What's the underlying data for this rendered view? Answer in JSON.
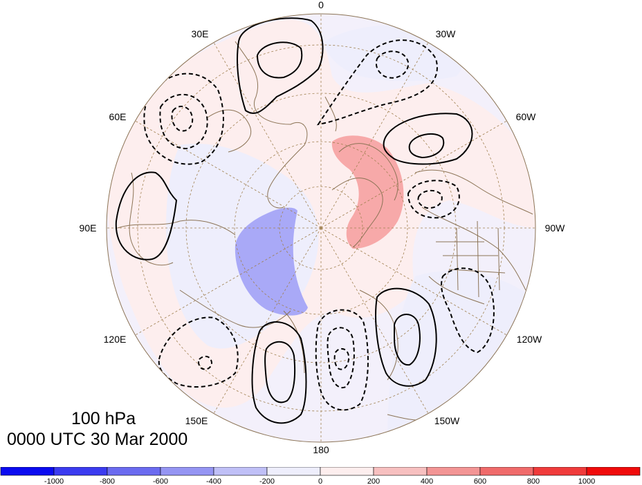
{
  "figure": {
    "level": "100 hPa",
    "time": "0000 UTC 30 Mar 2000"
  },
  "longitude_labels": [
    "0",
    "30W",
    "60W",
    "90W",
    "120W",
    "150W",
    "180",
    "150E",
    "120E",
    "90E",
    "60E",
    "30E"
  ],
  "projection": "polar stereographic, north pole centered",
  "colors": {
    "coastline": "#8b7355",
    "grid": "#a08050",
    "contour": "#000000",
    "light_pos": "#fdeeee",
    "light_neg": "#eeeefc",
    "pos_shade": "#f7a9a9",
    "neg_shade": "#a9a9f7"
  },
  "colorbar": {
    "labels": [
      "-1000",
      "-800",
      "-600",
      "-400",
      "-200",
      "0",
      "200",
      "400",
      "600",
      "800",
      "1000"
    ],
    "colors": [
      "#0b0bf0",
      "#3b3bf0",
      "#6b6bf0",
      "#9595f3",
      "#c0c0f7",
      "#eeeefc",
      "#fdeeee",
      "#f7c0c0",
      "#f39595",
      "#f06b6b",
      "#f03b3b",
      "#f00b0b"
    ]
  }
}
